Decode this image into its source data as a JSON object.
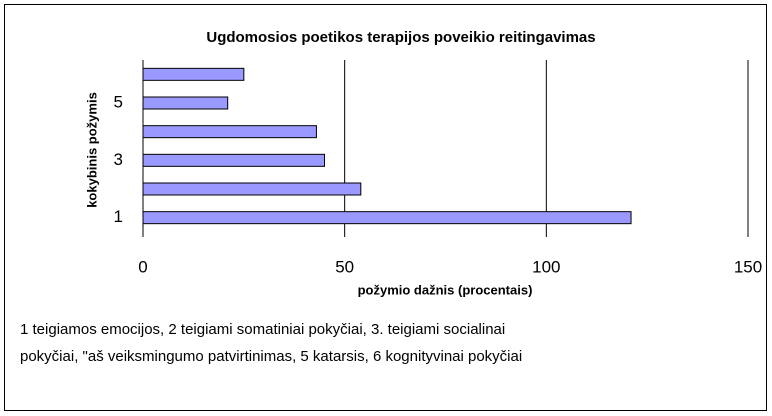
{
  "chart_data": {
    "type": "barh",
    "title": "Ugdomosios poetikos terapijos poveikio reitingavimas",
    "xlabel": "požymio dažnis (procentais)",
    "ylabel": "kokybinis požymis",
    "categories": [
      "1",
      null,
      "3",
      null,
      "5",
      null
    ],
    "values": [
      121,
      54,
      45,
      43,
      21,
      25
    ],
    "color": "#9999ff",
    "xlim": [
      0,
      150
    ],
    "xticks": [
      0,
      50,
      100,
      150
    ],
    "grid": true,
    "notes": [
      "1 teigiamos emocijos, 2 teigiami somatiniai pokyčiai, 3. teigiami socialinai",
      "pokyčiai, \"aš veiksmingumo patvirtinimas, 5 katarsis, 6 kognityvinai pokyčiai"
    ]
  }
}
